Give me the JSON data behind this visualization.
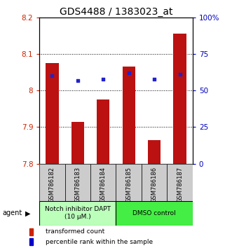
{
  "title": "GDS4488 / 1383023_at",
  "samples": [
    "GSM786182",
    "GSM786183",
    "GSM786184",
    "GSM786185",
    "GSM786186",
    "GSM786187"
  ],
  "bar_values": [
    8.075,
    7.915,
    7.975,
    8.065,
    7.865,
    8.155
  ],
  "blue_pct": [
    60,
    57,
    58,
    62,
    58,
    61
  ],
  "bar_color": "#BB1111",
  "blue_color": "#2222CC",
  "ylim": [
    7.8,
    8.2
  ],
  "y2lim": [
    0,
    100
  ],
  "yticks": [
    7.8,
    7.9,
    8.0,
    8.1,
    8.2
  ],
  "ytick_labels": [
    "7.8",
    "7.9",
    "8",
    "8.1",
    "8.2"
  ],
  "y2ticks": [
    0,
    25,
    50,
    75,
    100
  ],
  "y2ticklabels": [
    "0",
    "25",
    "50",
    "75",
    "100%"
  ],
  "bar_width": 0.5,
  "group1_label": "Notch inhibitor DAPT\n(10 μM.)",
  "group2_label": "DMSO control",
  "group1_color": "#BBFFBB",
  "group2_color": "#44EE44",
  "agent_label": "agent",
  "legend1_label": "transformed count",
  "legend2_label": "percentile rank within the sample",
  "bar_color_legend": "#CC2200",
  "blue_color_legend": "#0000CC",
  "red_tick_color": "#CC2200",
  "blue_tick_color": "#0000BB",
  "title_fontsize": 10,
  "tick_fontsize": 7.5,
  "bar_bottom": 7.8,
  "sample_box_color": "#CCCCCC"
}
